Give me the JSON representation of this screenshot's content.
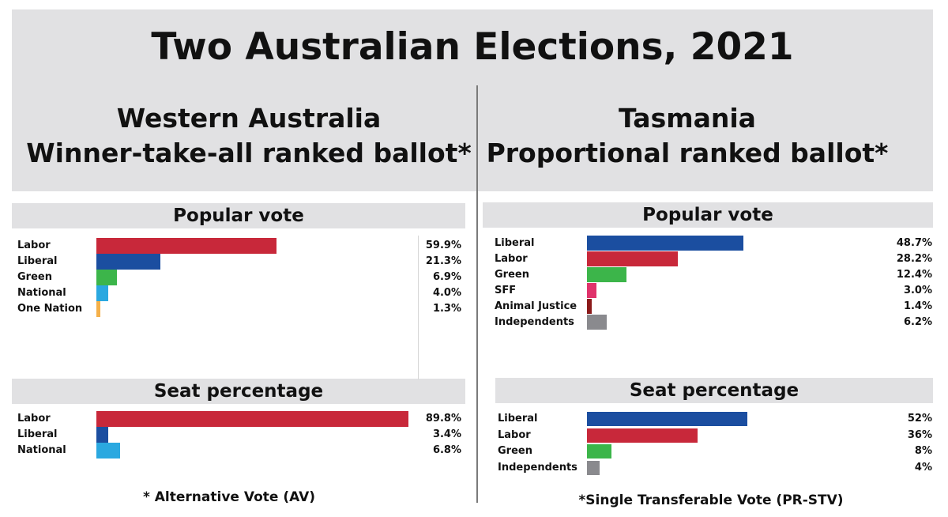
{
  "title": "Two Australian Elections, 2021",
  "chart_data": [
    {
      "type": "bar",
      "panel": "Western Australia",
      "heading_line1": "Western Australia",
      "heading_line2": "Winner-take-all ranked ballot*",
      "title": "Popular vote",
      "orientation": "horizontal",
      "categories": [
        "Labor",
        "Liberal",
        "Green",
        "National",
        "One Nation"
      ],
      "values": [
        59.9,
        21.3,
        6.9,
        4.0,
        1.3
      ],
      "value_labels": [
        "59.9%",
        "21.3%",
        "6.9%",
        "4.0%",
        "1.3%"
      ],
      "colors": [
        "#c8283a",
        "#1b4ea0",
        "#3cb54a",
        "#2aa8e0",
        "#f5b04a"
      ]
    },
    {
      "type": "bar",
      "panel": "Western Australia",
      "title": "Seat percentage",
      "orientation": "horizontal",
      "categories": [
        "Labor",
        "Liberal",
        "National"
      ],
      "values": [
        89.8,
        3.4,
        6.8
      ],
      "value_labels": [
        "89.8%",
        "3.4%",
        "6.8%"
      ],
      "colors": [
        "#c8283a",
        "#1b4ea0",
        "#2aa8e0"
      ],
      "footnote": "* Alternative Vote (AV)"
    },
    {
      "type": "bar",
      "panel": "Tasmania",
      "heading_line1": "Tasmania",
      "heading_line2": "Proportional ranked ballot*",
      "title": "Popular vote",
      "orientation": "horizontal",
      "categories": [
        "Liberal",
        "Labor",
        "Green",
        "SFF",
        "Animal Justice",
        "Independents"
      ],
      "values": [
        48.7,
        28.2,
        12.4,
        3.0,
        1.4,
        6.2
      ],
      "value_labels": [
        "48.7%",
        "28.2%",
        "12.4%",
        "3.0%",
        "1.4%",
        "6.2%"
      ],
      "colors": [
        "#1b4ea0",
        "#c8283a",
        "#3cb54a",
        "#e0336b",
        "#8b1a1a",
        "#8a8a8e"
      ]
    },
    {
      "type": "bar",
      "panel": "Tasmania",
      "title": "Seat percentage",
      "orientation": "horizontal",
      "categories": [
        "Liberal",
        "Labor",
        "Green",
        "Independents"
      ],
      "values": [
        52,
        36,
        8,
        4
      ],
      "value_labels": [
        "52%",
        "36%",
        "8%",
        "4%"
      ],
      "colors": [
        "#1b4ea0",
        "#c8283a",
        "#3cb54a",
        "#8a8a8e"
      ],
      "footnote": "*Single Transferable Vote (PR-STV)"
    }
  ]
}
